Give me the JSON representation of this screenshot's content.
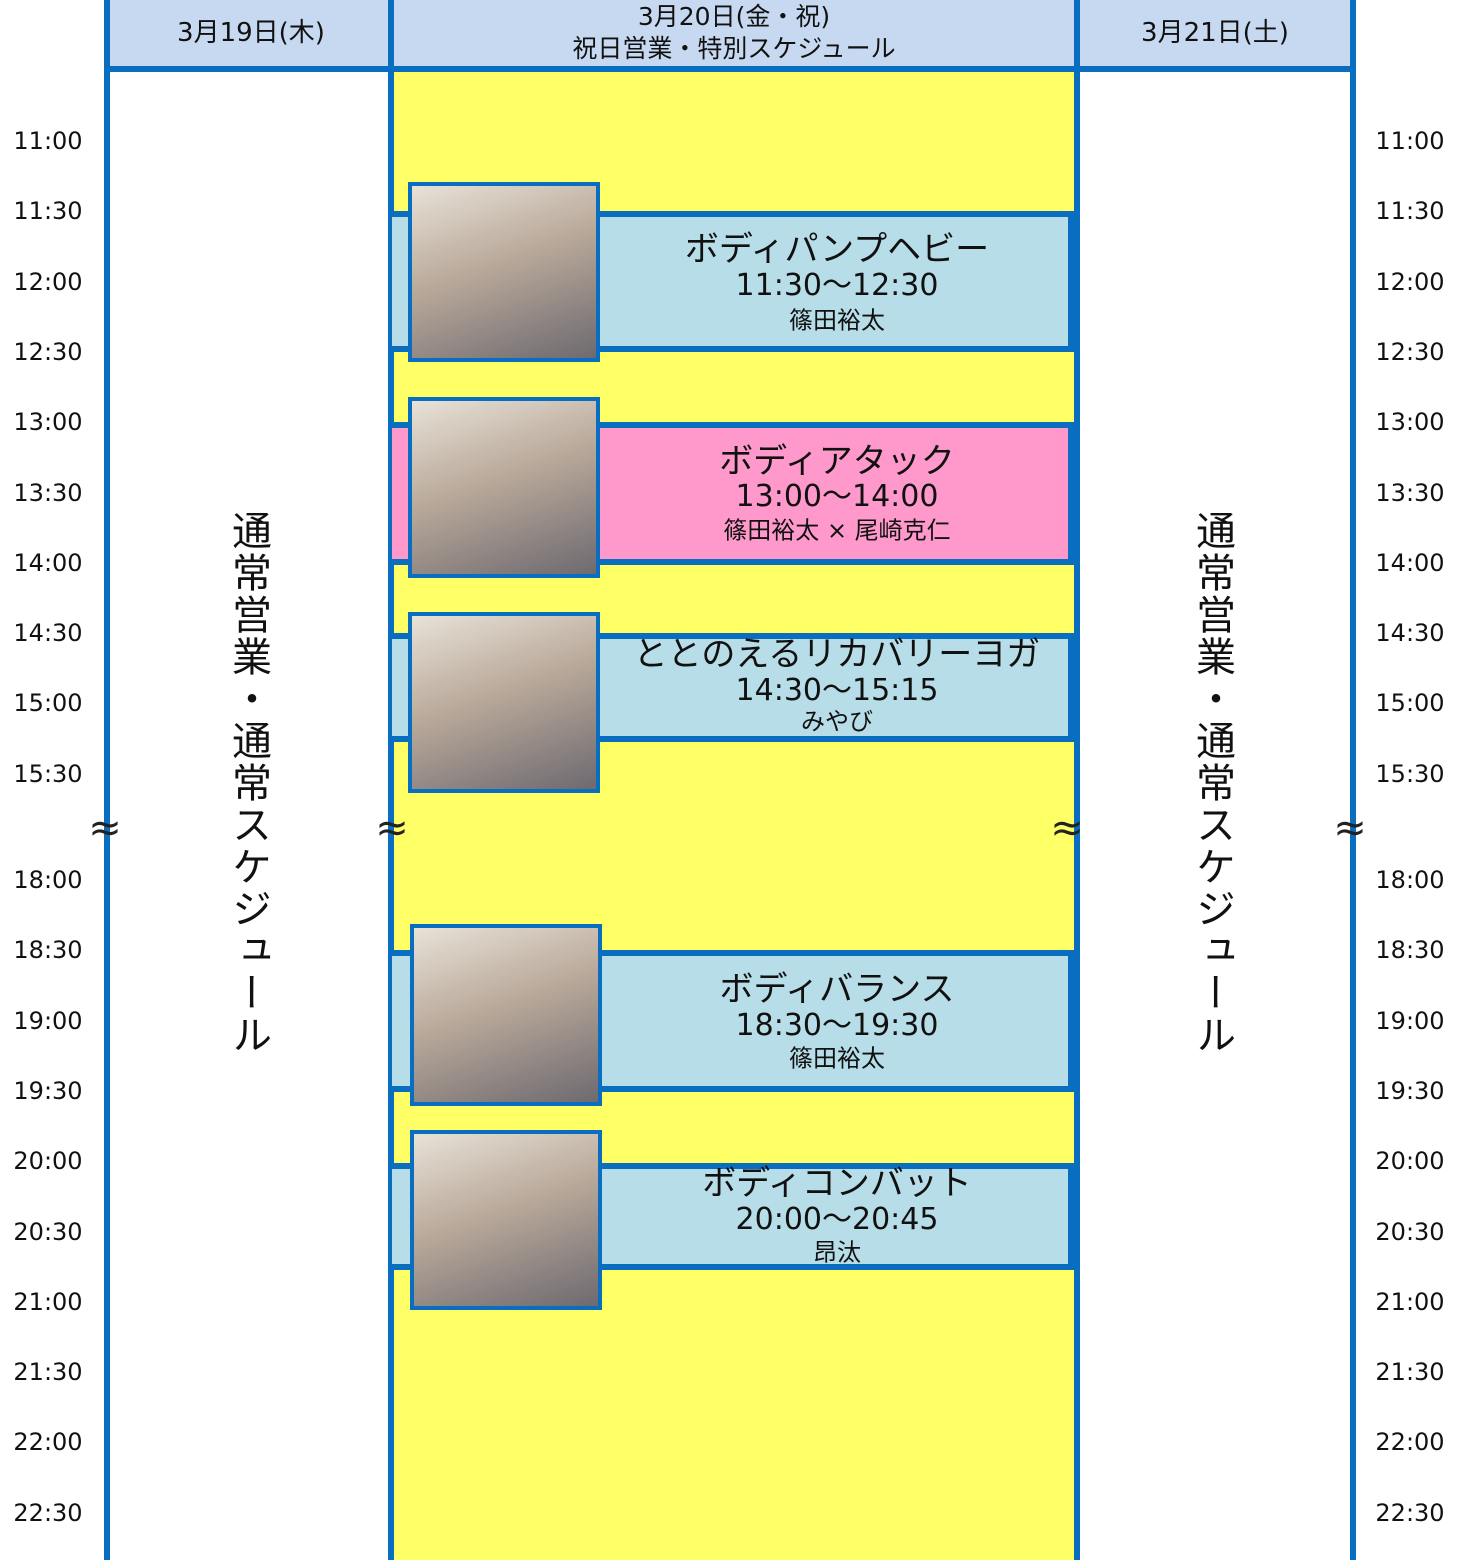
{
  "days": [
    {
      "date": "3月19日(木)",
      "note": "通常営業・通常スケジュール"
    },
    {
      "date": "3月20日(金・祝)",
      "subtitle": "祝日営業・特別スケジュール"
    },
    {
      "date": "3月21日(土)",
      "note": "通常営業・通常スケジュール"
    }
  ],
  "times": [
    "11:00",
    "11:30",
    "12:00",
    "12:30",
    "13:00",
    "13:30",
    "14:00",
    "14:30",
    "15:00",
    "15:30",
    "18:00",
    "18:30",
    "19:00",
    "19:30",
    "20:00",
    "20:30",
    "21:00",
    "21:30",
    "22:00",
    "22:30"
  ],
  "break_mark": "≈",
  "classes": [
    {
      "name": "ボディパンプヘビー",
      "time": "11:30〜12:30",
      "instructor": "篠田裕太"
    },
    {
      "name": "ボディアタック",
      "time": "13:00〜14:00",
      "instructor": "篠田裕太 × 尾崎克仁"
    },
    {
      "name": "ととのえるリカバリーヨガ",
      "time": "14:30〜15:15",
      "instructor": "みやび"
    },
    {
      "name": "ボディバランス",
      "time": "18:30〜19:30",
      "instructor": "篠田裕太"
    },
    {
      "name": "ボディコンバット",
      "time": "20:00〜20:45",
      "instructor": "昂汰"
    }
  ]
}
